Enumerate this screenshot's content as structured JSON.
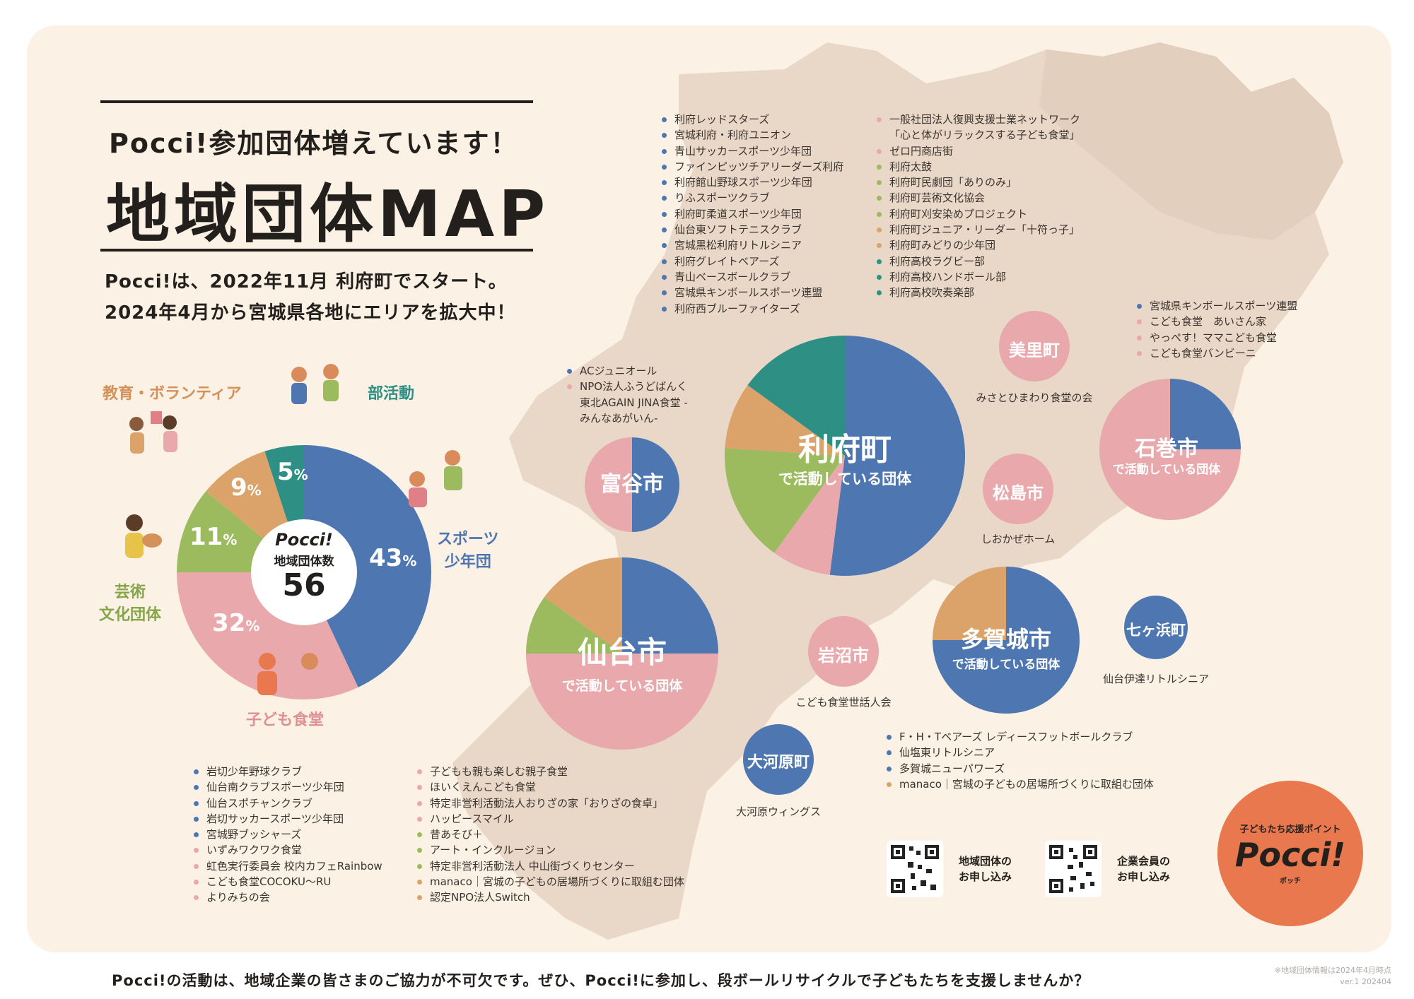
{
  "header": {
    "subtitle": "Pocci!参加団体増えています！",
    "title": "地域団体MAP",
    "intro_line1": "Pocci!は、2022年11月 利府町でスタート。",
    "intro_line2": "2024年4月から宮城県各地にエリアを拡大中！"
  },
  "colors": {
    "sports": "#4e76b0",
    "shokudo": "#e9a9ac",
    "culture": "#9cba5e",
    "education": "#dba36a",
    "club": "#2e8f85",
    "logo": "#e9784e"
  },
  "summary": {
    "center_brand": "Pocci!",
    "center_label": "地域団体数",
    "center_count": "56",
    "categories": {
      "sports": "スポーツ\n少年団",
      "shokudo": "子ども食堂",
      "culture": "芸術\n文化団体",
      "education": "教育・ボランティア",
      "club": "部活動"
    }
  },
  "chart_data": {
    "type": "pie",
    "title": "地域団体数 56",
    "categories": [
      "スポーツ少年団",
      "子ども食堂",
      "芸術文化団体",
      "教育・ボランティア",
      "部活動"
    ],
    "values": [
      43,
      32,
      11,
      9,
      5
    ],
    "labels": [
      "43%",
      "32%",
      "11%",
      "9%",
      "5%"
    ],
    "unit": "%"
  },
  "rifu": {
    "name": "利府町",
    "sub": "で活動している団体",
    "left_list": [
      "利府レッドスターズ",
      "宮城利府・利府ユニオン",
      "青山サッカースポーツ少年団",
      "ファインピッツチアリーダーズ利府",
      "利府館山野球スポーツ少年団",
      "りふスポーツクラブ",
      "利府町柔道スポーツ少年団",
      "仙台東ソフトテニスクラブ",
      "宮城黒松利府リトルシニア",
      "利府グレイトベアーズ",
      "青山ベースボールクラブ",
      "宮城県キンボールスポーツ連盟",
      "利府西ブルーファイターズ"
    ],
    "right_list": [
      "一般社団法人復興支援士業ネットワーク",
      "「心と体がリラックスする子ども食堂」",
      "ゼロ円商店街",
      "利府太鼓",
      "利府町民劇団「ありのみ」",
      "利府町芸術文化協会",
      "利府町刈安染めプロジェクト",
      "利府町ジュニア・リーダー「十符っ子」",
      "利府町みどりの少年団",
      "利府高校ラグビー部",
      "利府高校ハンドボール部",
      "利府高校吹奏楽部"
    ]
  },
  "tomiya": {
    "name": "富谷市",
    "list": [
      "ACジュニオール",
      "NPO法人ふうどばんく",
      "東北AGAIN JINA食堂 -",
      "みんなあがいん-"
    ]
  },
  "sendai": {
    "name": "仙台市",
    "sub": "で活動している団体",
    "list_left": [
      "岩切少年野球クラブ",
      "仙台南クラブスポーツ少年団",
      "仙台スポチャンクラブ",
      "岩切サッカースポーツ少年団",
      "宮城野ブッシャーズ",
      "いずみワクワク食堂",
      "虹色実行委員会 校内カフェRainbow",
      "こども食堂COCOKU〜RU",
      "よりみちの会"
    ],
    "list_right": [
      "子どもも親も楽しむ親子食堂",
      "ほいくえんこども食堂",
      "特定非営利活動法人おりざの家「おりざの食卓」",
      "ハッピースマイル",
      "昔あそび＋",
      "アート・インクルージョン",
      "特定非営利活動法人 中山街づくりセンター",
      "manaco｜宮城の子どもの居場所づくりに取組む団体",
      "認定NPO法人Switch"
    ]
  },
  "misato": {
    "name": "美里町",
    "caption": "みさとひまわり食堂の会"
  },
  "ishinomaki": {
    "name": "石巻市",
    "sub": "で活動している団体",
    "list": [
      "宮城県キンボールスポーツ連盟",
      "こども食堂　あいさん家",
      "やっぺす！ママこども食堂",
      "こども食堂バンビーニ"
    ]
  },
  "matsushima": {
    "name": "松島市",
    "caption": "しおかぜホーム"
  },
  "iwanuma": {
    "name": "岩沼市",
    "caption": "こども食堂世話人会"
  },
  "tagajo": {
    "name": "多賀城市",
    "sub": "で活動している団体",
    "list": [
      "F・H・Tベアーズ レディースフットボールクラブ",
      "仙塩東リトルシニア",
      "多賀城ニューパワーズ",
      "manaco｜宮城の子どもの居場所づくりに取組む団体"
    ]
  },
  "shichigahama": {
    "name": "七ヶ浜町",
    "caption": "仙台伊達リトルシニア"
  },
  "ogawara": {
    "name": "大河原町",
    "caption": "大河原ウィングス"
  },
  "qr": {
    "org_label_1": "地域団体の",
    "org_label_2": "お申し込み",
    "corp_label_1": "企業会員の",
    "corp_label_2": "お申し込み"
  },
  "logo": {
    "tagline": "子どもたち応援ポイント",
    "name": "Pocci!",
    "kana": "ポッチ"
  },
  "footer": {
    "message": "Pocci!の活動は、地域企業の皆さまのご協力が不可欠です。ぜひ、Pocci!に参加し、段ボールリサイクルで子どもたちを支援しませんか？",
    "note1": "※地域団体情報は2024年4月時点",
    "note2": "ver.1 202404"
  }
}
